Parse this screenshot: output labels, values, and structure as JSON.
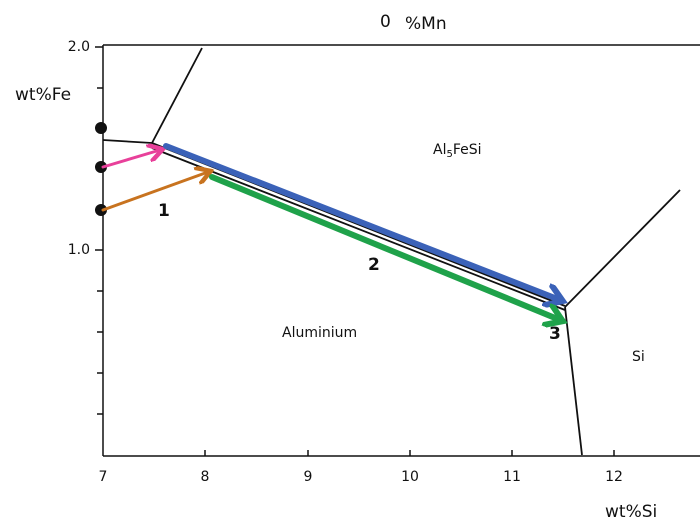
{
  "header": {
    "zero": "0",
    "title": "%Mn"
  },
  "axes": {
    "y_label": "wt%Fe",
    "x_label": "wt%Si",
    "yticks": [
      "2.0",
      "1.0"
    ],
    "xticks": [
      "7",
      "8",
      "9",
      "10",
      "11",
      "12"
    ]
  },
  "regions": {
    "intermetallic": {
      "main": "Al",
      "sub": "5",
      "rest": "FeSi"
    },
    "aluminium": "Aluminium",
    "silicon": "Si"
  },
  "steps": [
    "1",
    "2",
    "3"
  ]
}
